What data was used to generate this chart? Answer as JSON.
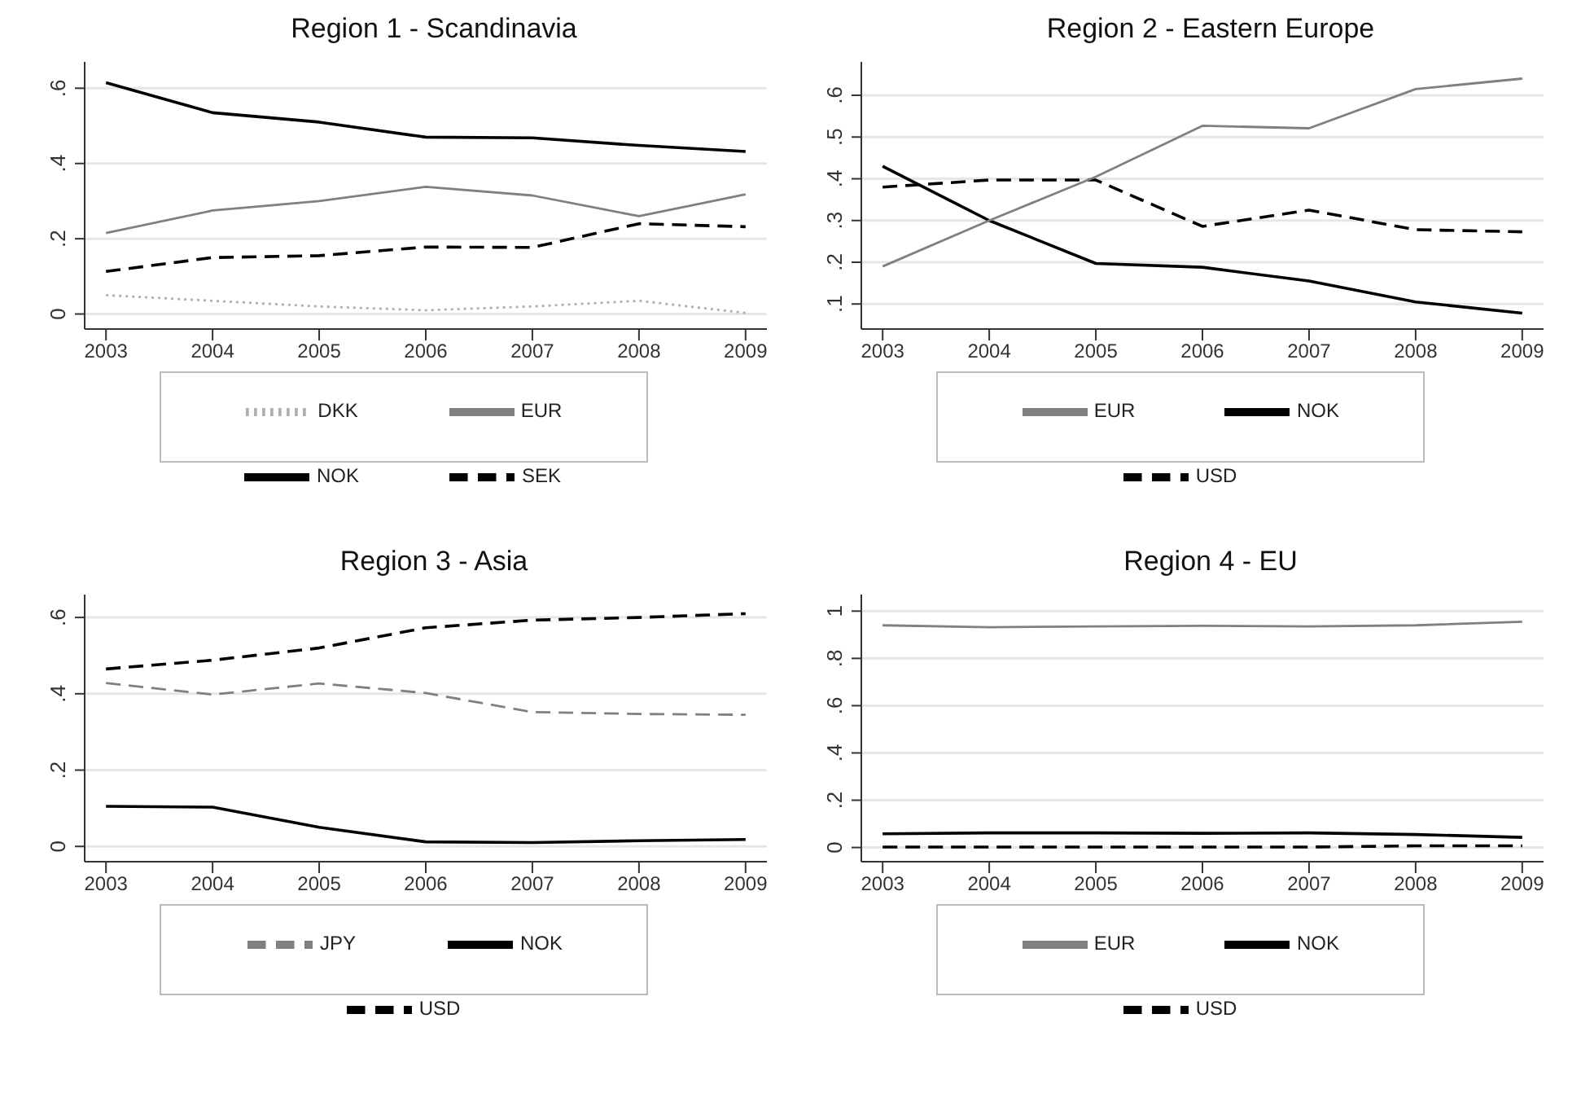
{
  "chart_data": [
    {
      "type": "line",
      "title": "Region 1 - Scandinavia",
      "x": [
        2003,
        2004,
        2005,
        2006,
        2007,
        2008,
        2009
      ],
      "xlim": [
        2002.8,
        2009.2
      ],
      "xticks": [
        2003,
        2004,
        2005,
        2006,
        2007,
        2008,
        2009
      ],
      "ylim": [
        -0.04,
        0.67
      ],
      "yticks": [
        {
          "value": 0,
          "label": "0"
        },
        {
          "value": 0.2,
          "label": ".2"
        },
        {
          "value": 0.4,
          "label": ".4"
        },
        {
          "value": 0.6,
          "label": ".6"
        }
      ],
      "grid": "y",
      "legend": "bottom",
      "marker": "none",
      "series": [
        {
          "name": "NOK",
          "color": "#000000",
          "line_style": "solid",
          "values": [
            0.615,
            0.535,
            0.51,
            0.47,
            0.468,
            0.448,
            0.432
          ]
        },
        {
          "name": "DKK",
          "color": "#b0b0b0",
          "line_style": "dotted",
          "values": [
            0.05,
            0.035,
            0.02,
            0.01,
            0.02,
            0.035,
            0.003
          ]
        },
        {
          "name": "EUR",
          "color": "#808080",
          "line_style": "solid",
          "values": [
            0.215,
            0.275,
            0.3,
            0.338,
            0.315,
            0.26,
            0.318
          ]
        },
        {
          "name": "SEK",
          "color": "#000000",
          "line_style": "dashed",
          "values": [
            0.113,
            0.15,
            0.155,
            0.178,
            0.177,
            0.24,
            0.232
          ]
        }
      ]
    },
    {
      "type": "line",
      "title": "Region 2 - Eastern Europe",
      "x": [
        2003,
        2004,
        2005,
        2006,
        2007,
        2008,
        2009
      ],
      "xlim": [
        2002.8,
        2009.2
      ],
      "xticks": [
        2003,
        2004,
        2005,
        2006,
        2007,
        2008,
        2009
      ],
      "ylim": [
        0.04,
        0.68
      ],
      "yticks": [
        {
          "value": 0.1,
          "label": ".1"
        },
        {
          "value": 0.2,
          "label": ".2"
        },
        {
          "value": 0.3,
          "label": ".3"
        },
        {
          "value": 0.4,
          "label": ".4"
        },
        {
          "value": 0.5,
          "label": ".5"
        },
        {
          "value": 0.6,
          "label": ".6"
        }
      ],
      "grid": "y",
      "legend": "bottom",
      "marker": "none",
      "series": [
        {
          "name": "NOK",
          "color": "#000000",
          "line_style": "solid",
          "values": [
            0.43,
            0.3,
            0.197,
            0.188,
            0.155,
            0.105,
            0.078
          ]
        },
        {
          "name": "USD",
          "color": "#000000",
          "line_style": "dashed",
          "values": [
            0.38,
            0.397,
            0.397,
            0.286,
            0.325,
            0.278,
            0.273
          ]
        },
        {
          "name": "EUR",
          "color": "#808080",
          "line_style": "solid",
          "values": [
            0.19,
            0.3,
            0.405,
            0.527,
            0.521,
            0.615,
            0.64
          ]
        }
      ]
    },
    {
      "type": "line",
      "title": "Region 3 - Asia",
      "x": [
        2003,
        2004,
        2005,
        2006,
        2007,
        2008,
        2009
      ],
      "xlim": [
        2002.8,
        2009.2
      ],
      "xticks": [
        2003,
        2004,
        2005,
        2006,
        2007,
        2008,
        2009
      ],
      "ylim": [
        -0.04,
        0.66
      ],
      "yticks": [
        {
          "value": 0,
          "label": "0"
        },
        {
          "value": 0.2,
          "label": ".2"
        },
        {
          "value": 0.4,
          "label": ".4"
        },
        {
          "value": 0.6,
          "label": ".6"
        }
      ],
      "grid": "y",
      "legend": "bottom",
      "marker": "none",
      "series": [
        {
          "name": "NOK",
          "color": "#000000",
          "line_style": "solid",
          "values": [
            0.105,
            0.103,
            0.05,
            0.012,
            0.01,
            0.015,
            0.018
          ]
        },
        {
          "name": "USD",
          "color": "#000000",
          "line_style": "dashed",
          "values": [
            0.465,
            0.488,
            0.52,
            0.573,
            0.593,
            0.6,
            0.61
          ]
        },
        {
          "name": "JPY",
          "color": "#808080",
          "line_style": "dashed",
          "values": [
            0.428,
            0.398,
            0.427,
            0.402,
            0.352,
            0.347,
            0.345
          ]
        }
      ]
    },
    {
      "type": "line",
      "title": "Region 4 - EU",
      "x": [
        2003,
        2004,
        2005,
        2006,
        2007,
        2008,
        2009
      ],
      "xlim": [
        2002.8,
        2009.2
      ],
      "xticks": [
        2003,
        2004,
        2005,
        2006,
        2007,
        2008,
        2009
      ],
      "ylim": [
        -0.06,
        1.07
      ],
      "yticks": [
        {
          "value": 0,
          "label": "0"
        },
        {
          "value": 0.2,
          "label": ".2"
        },
        {
          "value": 0.4,
          "label": ".4"
        },
        {
          "value": 0.6,
          "label": ".6"
        },
        {
          "value": 0.8,
          "label": ".8"
        },
        {
          "value": 1,
          "label": "1"
        }
      ],
      "grid": "y",
      "legend": "bottom",
      "marker": "none",
      "series": [
        {
          "name": "NOK",
          "color": "#000000",
          "line_style": "solid",
          "values": [
            0.058,
            0.062,
            0.062,
            0.06,
            0.062,
            0.055,
            0.043
          ]
        },
        {
          "name": "USD",
          "color": "#000000",
          "line_style": "dashed",
          "values": [
            0.002,
            0.002,
            0.002,
            0.002,
            0.002,
            0.007,
            0.007
          ]
        },
        {
          "name": "EUR",
          "color": "#808080",
          "line_style": "solid",
          "values": [
            0.94,
            0.932,
            0.935,
            0.938,
            0.935,
            0.94,
            0.955
          ]
        }
      ]
    }
  ]
}
